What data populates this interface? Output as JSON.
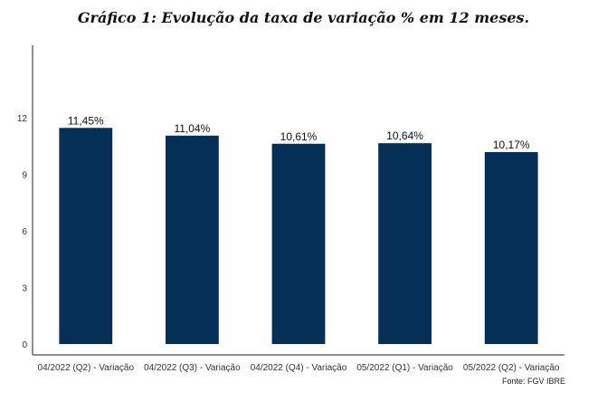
{
  "chart_data": {
    "type": "bar",
    "title": "Gráfico 1: Evolução da taxa de variação % em 12 meses.",
    "categories": [
      "04/2022 (Q2) - Variação",
      "04/2022 (Q3) - Variação",
      "04/2022 (Q4) - Variação",
      "05/2022 (Q1) - Variação",
      "05/2022 (Q2) - Variação"
    ],
    "values": [
      11.45,
      11.04,
      10.61,
      10.64,
      10.17
    ],
    "data_labels": [
      "11,45%",
      "11,04%",
      "10,61%",
      "10,64%",
      "10,17%"
    ],
    "yticks": [
      0,
      3,
      6,
      9,
      12
    ],
    "ylim": [
      0,
      16
    ],
    "xlabel": "",
    "ylabel": "",
    "grid": false,
    "bar_color": "#062f57",
    "source": "Fonte: FGV IBRE"
  }
}
